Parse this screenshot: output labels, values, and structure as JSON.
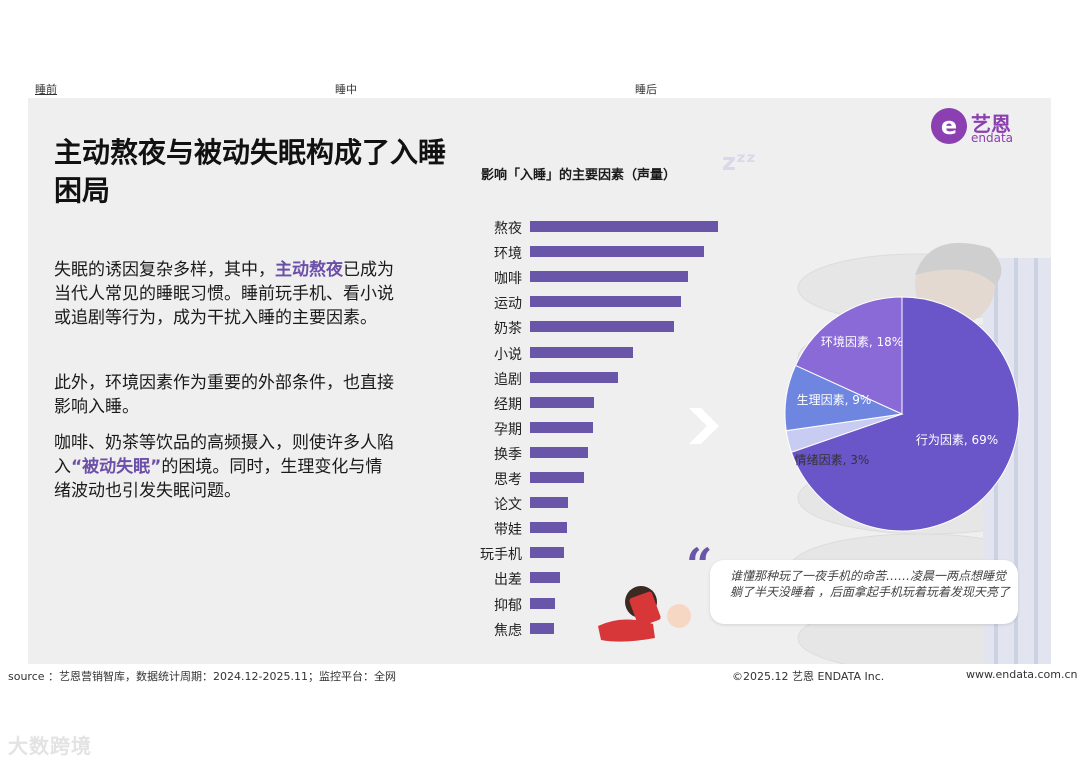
{
  "tabs": [
    "睡前",
    "睡中",
    "睡后"
  ],
  "logo": {
    "cn": "艺恩",
    "en": "endata",
    "mark": "e"
  },
  "headline": "主动熬夜与被动失眠构成了入睡困局",
  "para1": {
    "pre": "失眠的诱因复杂多样，其中，",
    "hl": "主动熬夜",
    "post": "已成为当代人常见的睡眠习惯。睡前玩手机、看小说或追剧等行为，成为干扰入睡的主要因素。"
  },
  "para2": "此外，环境因素作为重要的外部条件，也直接影响入睡。",
  "para3": {
    "pre": "咖啡、奶茶等饮品的高频摄入，则使许多人陷入",
    "hl": "“被动失眠”",
    "post": "的困境。同时，生理变化与情绪波动也引发失眠问题。"
  },
  "chart_title": "影响「入睡」的主要因素（声量）",
  "zz": "zᶻᶻ",
  "quote": {
    "mark": "“",
    "text": "谁懂那种玩了一夜手机的命苦……凌晨一两点想睡觉 躺了半天没睡着 ，后面拿起手机玩着玩着发现天亮了"
  },
  "footer": {
    "source": "source ：艺恩营销智库，数据统计周期：2024.12-2025.11；监控平台：全网",
    "copyright": "©2025.12 艺恩 ENDATA Inc.",
    "url": "www.endata.com.cn"
  },
  "watermark": "大数跨境",
  "colors": {
    "accent": "#6a56a8",
    "brand": "#8b3fb0",
    "pie_main": "#6a56c9",
    "pie_env": "#8a6ad6",
    "pie_phys": "#6f86e0",
    "pie_emo": "#c9ccf2"
  },
  "chart_data": [
    {
      "type": "bar",
      "orientation": "horizontal",
      "title": "影响「入睡」的主要因素（声量）",
      "categories": [
        "熬夜",
        "环境",
        "咖啡",
        "运动",
        "奶茶",
        "小说",
        "追剧",
        "经期",
        "孕期",
        "换季",
        "思考",
        "论文",
        "带娃",
        "玩手机",
        "出差",
        "抑郁",
        "焦虑"
      ],
      "values": [
        188,
        174,
        158,
        151,
        144,
        103,
        88,
        64,
        63,
        58,
        54,
        38,
        37,
        34,
        30,
        25,
        24
      ],
      "grid": false
    },
    {
      "type": "pie",
      "labels": [
        "行为因素",
        "环境因素",
        "生理因素",
        "情绪因素"
      ],
      "values": [
        69,
        18,
        9,
        3
      ],
      "display": [
        "行为因素, 69%",
        "环境因素, 18%",
        "生理因素, 9%",
        "情绪因素, 3%"
      ]
    }
  ]
}
